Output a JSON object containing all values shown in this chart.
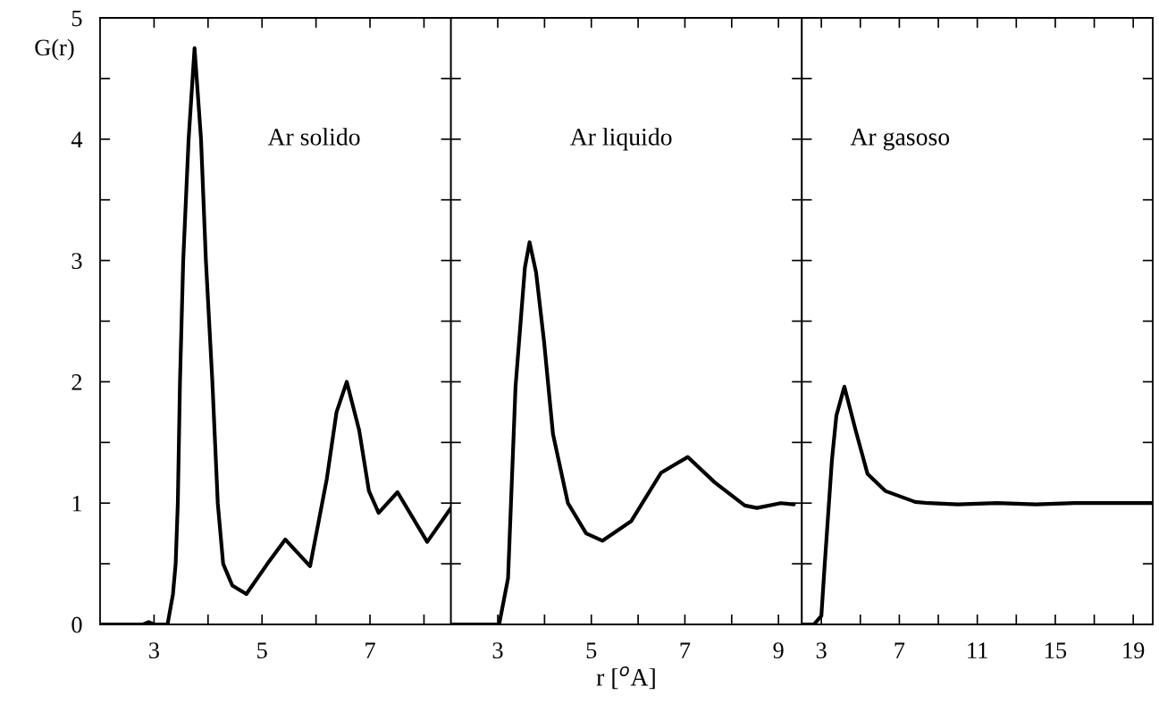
{
  "chart_data": [
    {
      "type": "line",
      "ylabel": "G(r)",
      "annotations": [
        "Ar solido"
      ],
      "xlim": [
        2,
        8.5
      ],
      "ylim": [
        0,
        5
      ],
      "xticks": [
        3,
        {
          "value": 4,
          "label": null
        },
        5,
        {
          "value": 6,
          "label": null
        },
        7,
        {
          "value": 8,
          "label": null
        }
      ],
      "yticks": [
        0,
        {
          "value": 0.5,
          "label": null
        },
        1,
        {
          "value": 1.5,
          "label": null
        },
        2,
        {
          "value": 2.5,
          "label": null
        },
        3,
        {
          "value": 3.5,
          "label": null
        },
        4,
        {
          "value": 4.5,
          "label": null
        },
        5
      ],
      "series": [
        {
          "color": "#000000",
          "x": [
            2,
            2.8,
            2.9,
            3.0,
            3.25,
            3.35,
            3.4,
            3.44,
            3.48,
            3.54,
            3.64,
            3.75,
            3.87,
            3.96,
            4.08,
            4.18,
            4.28,
            4.45,
            4.71,
            5.1,
            5.43,
            5.89,
            6.2,
            6.38,
            6.57,
            6.8,
            6.98,
            7.16,
            7.51,
            8.06,
            8.5
          ],
          "values": [
            0,
            0,
            0.02,
            0,
            0,
            0.25,
            0.5,
            1.0,
            2.0,
            3.0,
            4.0,
            4.75,
            4.0,
            3.0,
            2.0,
            1.0,
            0.5,
            0.32,
            0.25,
            0.5,
            0.7,
            0.48,
            1.2,
            1.75,
            2.0,
            1.6,
            1.1,
            0.92,
            1.09,
            0.68,
            0.96
          ]
        }
      ]
    },
    {
      "type": "line",
      "xlabel": "r [$^{o}$A]",
      "annotations": [
        "Ar liquido"
      ],
      "tick_labels": "x",
      "xlim": [
        2,
        9.5
      ],
      "ylim": [
        0,
        5
      ],
      "xticks": [
        3,
        {
          "value": 4,
          "label": null
        },
        5,
        {
          "value": 6,
          "label": null
        },
        7,
        {
          "value": 8,
          "label": null
        },
        9
      ],
      "yticks": [
        {
          "value": 0,
          "label": null
        },
        {
          "value": 0.5,
          "label": null
        },
        {
          "value": 1,
          "label": null
        },
        {
          "value": 1.5,
          "label": null
        },
        {
          "value": 2,
          "label": null
        },
        {
          "value": 2.5,
          "label": null
        },
        {
          "value": 3,
          "label": null
        },
        {
          "value": 3.5,
          "label": null
        },
        {
          "value": 4,
          "label": null
        },
        {
          "value": 4.5,
          "label": null
        },
        {
          "value": 5,
          "label": null
        }
      ],
      "series": [
        {
          "color": "#000000",
          "x": [
            2,
            3.03,
            3.22,
            3.38,
            3.58,
            3.68,
            3.82,
            3.99,
            4.18,
            4.5,
            4.89,
            5.24,
            5.85,
            6.49,
            7.06,
            7.64,
            8.28,
            8.54,
            9.05,
            9.33
          ],
          "values": [
            0,
            0,
            0.38,
            1.96,
            2.94,
            3.15,
            2.9,
            2.33,
            1.57,
            1.0,
            0.75,
            0.69,
            0.85,
            1.25,
            1.38,
            1.17,
            0.98,
            0.96,
            1.0,
            0.99
          ]
        }
      ]
    },
    {
      "type": "line",
      "annotations": [
        "Ar gasoso"
      ],
      "tick_labels": "x",
      "xlim": [
        2,
        20
      ],
      "ylim": [
        0,
        5
      ],
      "xticks": [
        3,
        {
          "value": 5,
          "label": null
        },
        7,
        {
          "value": 9,
          "label": null
        },
        11,
        {
          "value": 13,
          "label": null
        },
        15,
        {
          "value": 17,
          "label": null
        },
        19
      ],
      "yticks": [
        {
          "value": 0,
          "label": null
        },
        {
          "value": 0.5,
          "label": null
        },
        {
          "value": 1,
          "label": null
        },
        {
          "value": 1.5,
          "label": null
        },
        {
          "value": 2,
          "label": null
        },
        {
          "value": 2.5,
          "label": null
        },
        {
          "value": 3,
          "label": null
        },
        {
          "value": 3.5,
          "label": null
        },
        {
          "value": 4,
          "label": null
        },
        {
          "value": 4.5,
          "label": null
        },
        {
          "value": 5,
          "label": null
        }
      ],
      "series": [
        {
          "color": "#000000",
          "x": [
            2,
            2.62,
            3.0,
            3.15,
            3.54,
            3.77,
            4.18,
            4.76,
            5.37,
            6.28,
            7.81,
            8.5,
            10,
            12,
            14,
            16,
            18,
            20
          ],
          "values": [
            0,
            0,
            0.07,
            0.44,
            1.35,
            1.72,
            1.96,
            1.6,
            1.24,
            1.1,
            1.01,
            1.0,
            0.99,
            1.0,
            0.99,
            1.0,
            1.0,
            1.0
          ]
        }
      ]
    }
  ]
}
